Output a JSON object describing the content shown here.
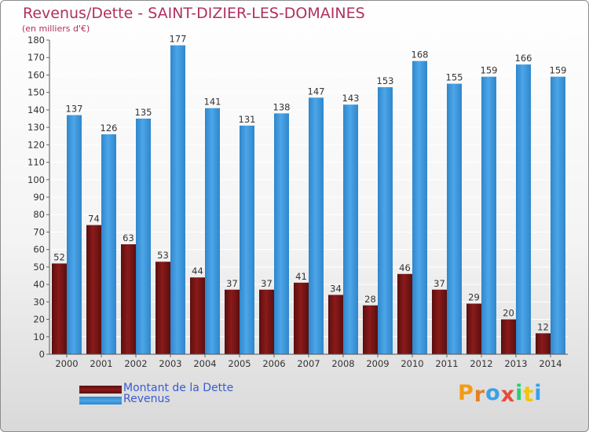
{
  "title": "Revenus/Dette - SAINT-DIZIER-LES-DOMAINES",
  "subtitle": "(en milliers d'€)",
  "brand": {
    "letters": [
      "P",
      "r",
      "o",
      "x",
      "i",
      "t",
      "i"
    ],
    "colors": [
      "#f39c12",
      "#e67e22",
      "#3aa0e8",
      "#e74c3c",
      "#2ecc71",
      "#f1c40f",
      "#3aa0e8"
    ]
  },
  "colors": {
    "debt": "#8b1a1a",
    "debt_dark": "#5a0f0f",
    "revenue": "#4da6e8",
    "revenue_dark": "#2f86cc",
    "axis_text": "#333333",
    "value_text": "#333333"
  },
  "chart_data": {
    "type": "bar",
    "title": "Revenus/Dette - SAINT-DIZIER-LES-DOMAINES",
    "subtitle": "(en milliers d'€)",
    "categories": [
      "2000",
      "2001",
      "2002",
      "2003",
      "2004",
      "2005",
      "2006",
      "2007",
      "2008",
      "2009",
      "2010",
      "2011",
      "2012",
      "2013",
      "2014"
    ],
    "series": [
      {
        "name": "Montant de la Dette",
        "values": [
          52,
          74,
          63,
          53,
          44,
          37,
          37,
          41,
          34,
          28,
          46,
          37,
          29,
          20,
          12
        ]
      },
      {
        "name": "Revenus",
        "values": [
          137,
          126,
          135,
          177,
          141,
          131,
          138,
          147,
          143,
          153,
          168,
          155,
          159,
          166,
          159
        ]
      }
    ],
    "ylim": [
      0,
      180
    ],
    "yticks": [
      0,
      10,
      20,
      30,
      40,
      50,
      60,
      70,
      80,
      90,
      100,
      110,
      120,
      130,
      140,
      150,
      160,
      170,
      180
    ],
    "grid": true,
    "legend": "bottom-left"
  }
}
